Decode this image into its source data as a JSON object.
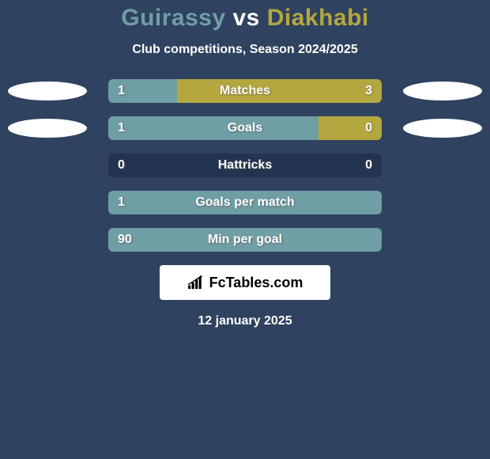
{
  "background_color": "#2f425f",
  "text_color": "#ffffff",
  "title": {
    "player1": "Guirassy",
    "vs": "vs",
    "player2": "Diakhabi",
    "player1_color": "#6f9ea4",
    "vs_color": "#ffffff",
    "player2_color": "#b4a73f"
  },
  "subtitle": "Club competitions, Season 2024/2025",
  "bar_track_bg": "#243450",
  "player1_bar_color": "#6f9ea4",
  "player2_bar_color": "#b4a73f",
  "rows": [
    {
      "label": "Matches",
      "left_val": "1",
      "right_val": "3",
      "left_pct": 25,
      "right_pct": 75,
      "right_color_override": null,
      "show_ellipses": true
    },
    {
      "label": "Goals",
      "left_val": "1",
      "right_val": "0",
      "left_pct": 77,
      "right_pct": 23,
      "right_color_override": "#b4a73f",
      "show_ellipses": true
    },
    {
      "label": "Hattricks",
      "left_val": "0",
      "right_val": "0",
      "left_pct": 0,
      "right_pct": 0,
      "right_color_override": null,
      "show_ellipses": false
    },
    {
      "label": "Goals per match",
      "left_val": "1",
      "right_val": "",
      "left_pct": 100,
      "right_pct": 0,
      "right_color_override": null,
      "show_ellipses": false
    },
    {
      "label": "Min per goal",
      "left_val": "90",
      "right_val": "",
      "left_pct": 100,
      "right_pct": 0,
      "right_color_override": null,
      "show_ellipses": false
    }
  ],
  "logo": {
    "bg": "#ffffff",
    "icon_color": "#000000",
    "text": "FcTables.com"
  },
  "date": "12 january 2025"
}
